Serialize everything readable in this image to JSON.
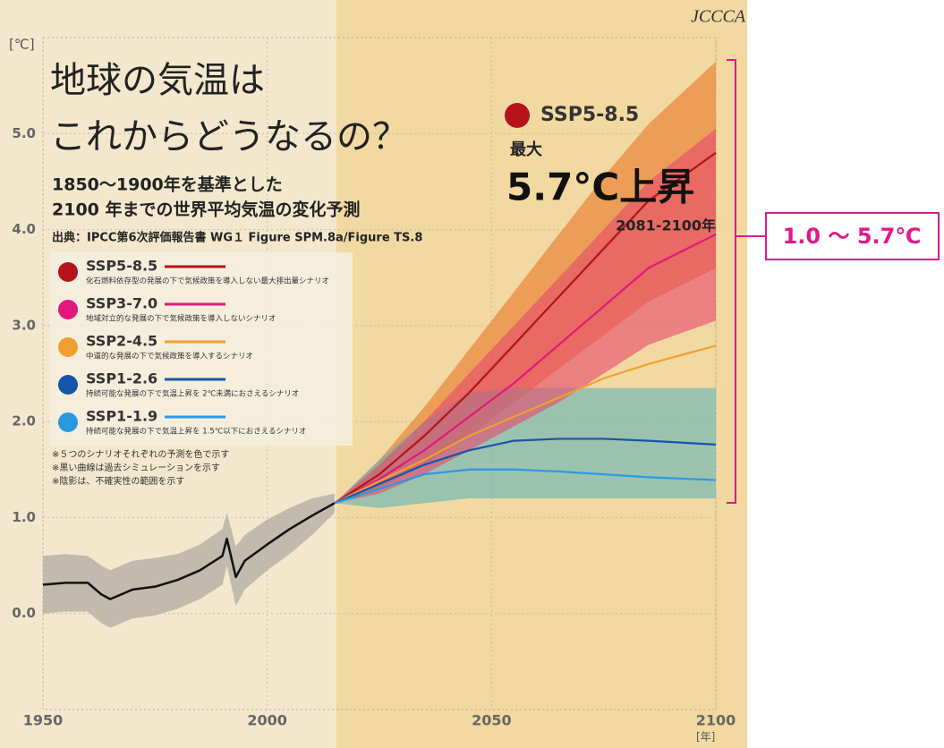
{
  "chart_data": {
    "type": "line",
    "title": [
      "地球の気温は",
      "これからどうなるの？"
    ],
    "subtitle": [
      "1850～1900年を基準とした",
      "2100 年までの世界平均気温の変化予測"
    ],
    "source": "出典：IPCC第6次評価報告書 WG１ Figure SPM.8a/Figure TS.8",
    "logo": "JCCCA",
    "y_unit": "[℃]",
    "x_unit": "[年]",
    "xlim": [
      1950,
      2100
    ],
    "xticks": [
      1950,
      2000,
      2050,
      2100
    ],
    "ylim": [
      -1,
      6
    ],
    "yticks": [
      {
        "value": 0,
        "label": "0.0"
      },
      {
        "value": 1,
        "label": "1.0"
      },
      {
        "value": 2,
        "label": "2.0"
      },
      {
        "value": 3,
        "label": "3.0"
      },
      {
        "value": 4,
        "label": "4.0"
      },
      {
        "value": 5,
        "label": "5.0"
      }
    ],
    "grid": true,
    "history": {
      "color": "#111111",
      "band_color": "#b8b2a6",
      "x": [
        1950,
        1955,
        1960,
        1963,
        1965,
        1970,
        1975,
        1980,
        1985,
        1990,
        1991,
        1993,
        1995,
        2000,
        2005,
        2010,
        2015
      ],
      "values": [
        0.3,
        0.32,
        0.32,
        0.2,
        0.15,
        0.25,
        0.28,
        0.35,
        0.45,
        0.6,
        0.78,
        0.38,
        0.55,
        0.72,
        0.88,
        1.02,
        1.15
      ],
      "upper": [
        0.6,
        0.62,
        0.6,
        0.5,
        0.45,
        0.55,
        0.58,
        0.62,
        0.72,
        0.88,
        1.05,
        0.7,
        0.82,
        0.98,
        1.1,
        1.2,
        1.25
      ],
      "lower": [
        0.0,
        0.02,
        0.02,
        -0.1,
        -0.15,
        -0.05,
        -0.02,
        0.05,
        0.15,
        0.3,
        0.5,
        0.08,
        0.25,
        0.45,
        0.62,
        0.82,
        1.05
      ]
    },
    "x": [
      2015,
      2025,
      2035,
      2045,
      2055,
      2065,
      2075,
      2085,
      2100
    ],
    "series": [
      {
        "name": "SSP5-8.5",
        "description": "化石燃料依存型の発展の下で気候政策を導入しない最大排出量シナリオ",
        "color": "#b5121b",
        "band_color": "#e9883d",
        "values": [
          1.15,
          1.45,
          1.85,
          2.3,
          2.8,
          3.3,
          3.8,
          4.3,
          4.8
        ],
        "upper": [
          1.15,
          1.6,
          2.15,
          2.75,
          3.35,
          3.95,
          4.55,
          5.1,
          5.75
        ],
        "lower": [
          1.15,
          1.3,
          1.55,
          1.85,
          2.2,
          2.55,
          2.9,
          3.25,
          3.6
        ]
      },
      {
        "name": "SSP3-7.0",
        "description": "地域対立的な発展の下で気候政策を導入しないシナリオ",
        "color": "#e0197d",
        "band_color": "#e8466a",
        "values": [
          1.15,
          1.4,
          1.7,
          2.05,
          2.4,
          2.8,
          3.2,
          3.6,
          3.95
        ],
        "upper": [
          1.15,
          1.55,
          2.0,
          2.5,
          3.0,
          3.5,
          4.0,
          4.5,
          5.05
        ],
        "lower": [
          1.15,
          1.25,
          1.45,
          1.7,
          1.95,
          2.2,
          2.5,
          2.8,
          3.05
        ]
      },
      {
        "name": "SSP2-4.5",
        "description": "中道的な発展の下で気候政策を導入するシナリオ",
        "color": "#f0a030",
        "values": [
          1.15,
          1.38,
          1.6,
          1.85,
          2.05,
          2.25,
          2.45,
          2.6,
          2.79
        ]
      },
      {
        "name": "SSP1-2.6",
        "description": "持続可能な発展の下で気温上昇を 2℃未満におさえるシナリオ",
        "color": "#1655a8",
        "band_color": "#5fb3b8",
        "values": [
          1.15,
          1.35,
          1.55,
          1.7,
          1.8,
          1.82,
          1.82,
          1.8,
          1.76
        ],
        "upper": [
          1.15,
          1.6,
          2.0,
          2.3,
          2.35,
          2.35,
          2.35,
          2.35,
          2.35
        ],
        "lower": [
          1.15,
          1.1,
          1.15,
          1.2,
          1.2,
          1.2,
          1.2,
          1.2,
          1.2
        ]
      },
      {
        "name": "SSP1-1.9",
        "description": "持続可能な発展の下で気温上昇を 1.5℃以下におさえるシナリオ",
        "color": "#2a9ae0",
        "values": [
          1.15,
          1.3,
          1.45,
          1.5,
          1.5,
          1.48,
          1.45,
          1.42,
          1.39
        ]
      }
    ],
    "notes": [
      "※５つのシナリオそれぞれの予測を色で示す",
      "※黒い曲線は過去シミュレーションを示す",
      "※陰影は、不確実性の範囲を示す"
    ],
    "annotation": {
      "scenario": "SSP5-8.5",
      "label": "最大",
      "value": "5.7°C上昇",
      "period": "2081-2100年"
    },
    "callout": "1.0 ～ 5.7℃"
  }
}
